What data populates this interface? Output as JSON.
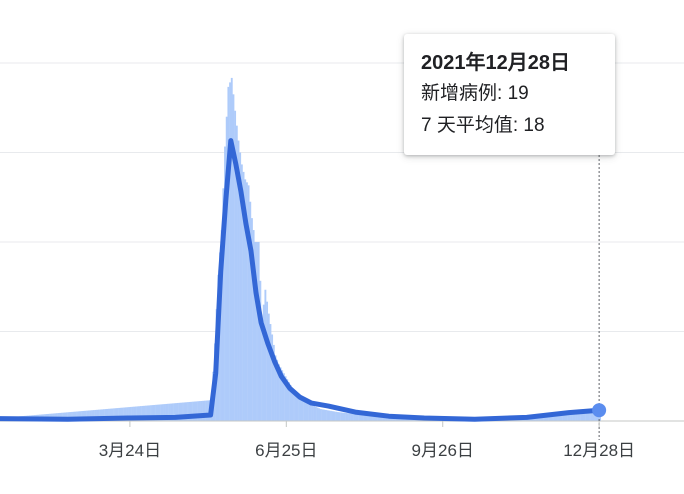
{
  "tooltip": {
    "date": "2021年12月28日",
    "new_cases_label": "新增病例",
    "new_cases_value": "19",
    "avg_label": "7 天平均值",
    "avg_value": "18"
  },
  "chart_data": {
    "type": "bar",
    "series": [
      {
        "values_kind": "daily",
        "x": [
          "2021-01-01",
          "2021-05-11",
          "2021-05-13",
          "2021-05-15",
          "2021-05-17",
          "2021-05-19",
          "2021-05-21",
          "2021-05-23",
          "2021-05-25",
          "2021-05-27",
          "2021-05-29",
          "2021-05-31",
          "2021-06-02",
          "2021-06-04",
          "2021-06-06",
          "2021-06-08",
          "2021-06-10",
          "2021-06-12",
          "2021-06-14",
          "2021-06-16",
          "2021-06-18",
          "2021-06-20",
          "2021-06-23",
          "2021-06-27",
          "2021-07-01",
          "2021-07-07",
          "2021-07-15",
          "2021-07-25",
          "2021-08-10",
          "2021-09-05",
          "2021-10-10",
          "2021-11-15",
          "2021-12-20",
          "2021-12-28"
        ],
        "values": [
          4,
          35,
          130,
          245,
          320,
          460,
          560,
          575,
          520,
          470,
          430,
          405,
          395,
          340,
          300,
          300,
          170,
          220,
          180,
          145,
          110,
          95,
          80,
          60,
          40,
          30,
          20,
          15,
          10,
          8,
          6,
          10,
          16,
          19
        ]
      },
      {
        "values_kind": "average",
        "x": [
          "2021-01-01",
          "2021-02-15",
          "2021-03-24",
          "2021-04-20",
          "2021-05-11",
          "2021-05-14",
          "2021-05-17",
          "2021-05-20",
          "2021-05-23",
          "2021-05-26",
          "2021-05-29",
          "2021-06-01",
          "2021-06-04",
          "2021-06-07",
          "2021-06-10",
          "2021-06-14",
          "2021-06-18",
          "2021-06-22",
          "2021-06-27",
          "2021-07-03",
          "2021-07-10",
          "2021-07-20",
          "2021-08-05",
          "2021-08-25",
          "2021-09-15",
          "2021-10-15",
          "2021-11-15",
          "2021-12-10",
          "2021-12-28"
        ],
        "values": [
          4,
          3,
          5,
          6,
          10,
          80,
          250,
          370,
          470,
          430,
          385,
          330,
          285,
          215,
          165,
          130,
          100,
          75,
          55,
          40,
          30,
          25,
          15,
          8,
          5,
          3,
          6,
          14,
          18
        ]
      }
    ],
    "x_ticks": [
      "3月24日",
      "6月25日",
      "9月26日",
      "12月28日"
    ],
    "xlim": [
      "2021-01-01",
      "2021-12-31"
    ],
    "ylim": [
      0,
      600
    ],
    "grid": true,
    "colors": {
      "daily": "#aecbfa",
      "average": "#3367d6",
      "grid": "#e8eaed",
      "axis": "#c4c7c5",
      "tick_text": "#3c4043",
      "crosshair": "#5f6368"
    }
  }
}
